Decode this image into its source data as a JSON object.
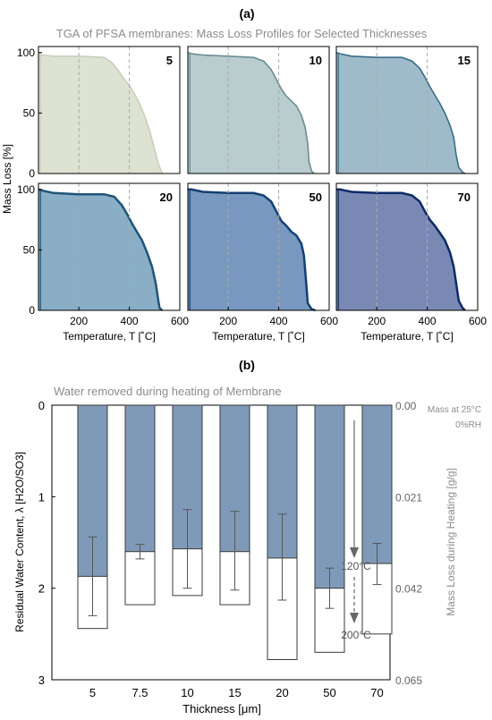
{
  "panel_a_label": "(a)",
  "panel_b_label": "(b)",
  "colors": {
    "grid": "#aaaaaa",
    "axis": "#000000",
    "title_gray": "#8c8c8c",
    "bar_fill": "#7f9ab8",
    "bar_stroke": "#3a3a3a",
    "arrow_gray": "#666666"
  },
  "chart_data": [
    {
      "type": "area",
      "title": "TGA of PFSA membranes: Mass Loss Profiles for Selected Thicknesses",
      "xlabel": "Temperature, T [˚C]",
      "ylabel": "Mass Loss [%]",
      "xlim": [
        40,
        600
      ],
      "ylim": [
        0,
        105
      ],
      "xticks": [
        200,
        400,
        600
      ],
      "yticks": [
        0,
        50,
        100
      ],
      "grid": "vertical dashed at 200 and 400",
      "layout": "2x3 small multiples",
      "series": [
        {
          "name": "5",
          "fill": "#dde2d3",
          "line": "#c7d0bb",
          "x": [
            40,
            55,
            100,
            200,
            300,
            330,
            360,
            380,
            400,
            420,
            440,
            460,
            480,
            500,
            515,
            530
          ],
          "y": [
            100,
            98,
            97,
            97,
            96,
            92,
            84,
            78,
            73,
            66,
            58,
            48,
            36,
            20,
            8,
            0
          ]
        },
        {
          "name": "10",
          "fill": "#b9ccce",
          "line": "#6a8c93",
          "x": [
            40,
            55,
            100,
            200,
            300,
            340,
            370,
            390,
            410,
            430,
            450,
            470,
            490,
            505,
            515,
            520,
            530,
            540
          ],
          "y": [
            100,
            99,
            98,
            97,
            96,
            93,
            86,
            78,
            70,
            64,
            60,
            56,
            48,
            38,
            25,
            10,
            2,
            0
          ]
        },
        {
          "name": "15",
          "fill": "#9fbbc9",
          "line": "#396c8a",
          "x": [
            40,
            55,
            100,
            200,
            300,
            340,
            370,
            390,
            410,
            430,
            450,
            470,
            490,
            505,
            515,
            525,
            540,
            550
          ],
          "y": [
            100,
            99,
            97,
            96,
            96,
            93,
            87,
            80,
            72,
            65,
            58,
            50,
            40,
            30,
            15,
            5,
            1,
            0
          ]
        },
        {
          "name": "20",
          "fill": "#89aec5",
          "line": "#1f5578",
          "x": [
            40,
            55,
            100,
            200,
            300,
            340,
            370,
            390,
            410,
            430,
            450,
            470,
            490,
            505,
            515,
            520,
            530
          ],
          "y": [
            100,
            99,
            97,
            96,
            96,
            94,
            87,
            80,
            72,
            65,
            58,
            48,
            36,
            22,
            8,
            2,
            0
          ]
        },
        {
          "name": "50",
          "fill": "#7898bf",
          "line": "#143f74",
          "x": [
            40,
            55,
            100,
            200,
            300,
            340,
            370,
            390,
            410,
            430,
            450,
            470,
            490,
            500,
            510,
            515,
            530,
            545
          ],
          "y": [
            100,
            100,
            98,
            97,
            97,
            95,
            90,
            82,
            74,
            70,
            65,
            62,
            55,
            45,
            20,
            6,
            1,
            0
          ]
        },
        {
          "name": "70",
          "fill": "#7a89b3",
          "line": "#0d2a68",
          "x": [
            40,
            55,
            100,
            200,
            300,
            340,
            370,
            390,
            410,
            430,
            450,
            470,
            490,
            505,
            515,
            525,
            540,
            550
          ],
          "y": [
            100,
            100,
            98,
            97,
            97,
            95,
            90,
            82,
            75,
            70,
            64,
            58,
            48,
            36,
            22,
            8,
            2,
            0
          ]
        }
      ]
    },
    {
      "type": "bar",
      "title": "Water removed during heating of Membrane",
      "xlabel": "Thickness [μm]",
      "ylabel": "Residual Water Content, λ [H2O/SO3]",
      "ylabel_right": "Mass Loss during Heating [g/g]",
      "ylim": [
        3,
        0
      ],
      "yticks": [
        0,
        1,
        2,
        3
      ],
      "right_yticks": [
        "0.00",
        "0.021",
        "0.042",
        "0.065"
      ],
      "categories": [
        "5",
        "7.5",
        "10",
        "15",
        "20",
        "50",
        "70"
      ],
      "series": [
        {
          "name": "120°C",
          "values": [
            1.87,
            1.6,
            1.57,
            1.6,
            1.67,
            2.0,
            1.73
          ],
          "err_low": [
            1.44,
            1.52,
            1.14,
            1.16,
            1.19,
            1.78,
            1.51
          ],
          "err_high": [
            2.3,
            1.68,
            2.0,
            2.02,
            2.13,
            2.22,
            1.96
          ]
        },
        {
          "name": "200°C",
          "values": [
            2.44,
            2.18,
            2.08,
            2.18,
            2.78,
            2.7,
            2.5
          ]
        }
      ],
      "annotations": {
        "mass_at": "Mass at 25°C",
        "rh": "0%RH",
        "t120": "120°C",
        "t200": "200°C"
      }
    }
  ]
}
